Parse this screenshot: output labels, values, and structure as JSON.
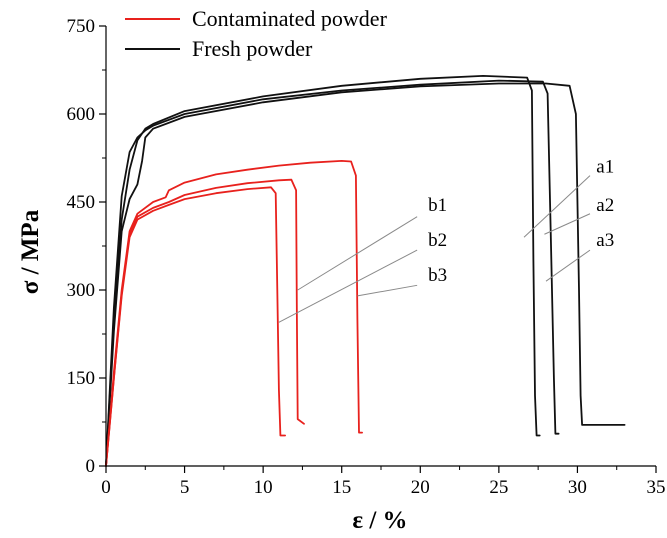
{
  "chart_data": {
    "type": "line",
    "xlabel": "ε / %",
    "ylabel": "σ / MPa",
    "xlim": [
      0,
      35
    ],
    "ylim": [
      0,
      750
    ],
    "xticks": [
      0,
      5,
      10,
      15,
      20,
      25,
      30,
      35
    ],
    "yticks": [
      0,
      150,
      300,
      450,
      600,
      750
    ],
    "legend_position": "top-left",
    "colors": {
      "contaminated": "#e8211d",
      "fresh": "#111111",
      "annotation": "#8a8a8a"
    },
    "legend": [
      {
        "label": "Contaminated powder",
        "color": "#e8211d"
      },
      {
        "label": "Fresh powder",
        "color": "#111111"
      }
    ],
    "series": [
      {
        "name": "a1",
        "group": "fresh",
        "x": [
          0,
          0.5,
          1.0,
          1.5,
          2.0,
          2.5,
          3,
          5,
          10,
          15,
          20,
          24,
          26.8,
          27.1,
          27.2,
          27.3,
          27.4,
          27.6
        ],
        "y": [
          0,
          250,
          420,
          505,
          555,
          575,
          583,
          605,
          630,
          648,
          660,
          665,
          662,
          640,
          350,
          120,
          52,
          52
        ]
      },
      {
        "name": "a2",
        "group": "fresh",
        "x": [
          0,
          0.5,
          1.0,
          1.5,
          2.0,
          2.5,
          3,
          5,
          10,
          15,
          20,
          25,
          27.8,
          28.1,
          28.3,
          28.5,
          28.6,
          28.8
        ],
        "y": [
          0,
          270,
          460,
          535,
          560,
          572,
          580,
          600,
          625,
          640,
          650,
          657,
          655,
          635,
          400,
          150,
          55,
          55
        ]
      },
      {
        "name": "a3",
        "group": "fresh",
        "x": [
          0,
          0.5,
          1.0,
          1.5,
          2.0,
          2.3,
          2.5,
          3,
          5,
          10,
          15,
          20,
          25,
          28,
          29.5,
          29.9,
          30.1,
          30.2,
          30.3,
          33
        ],
        "y": [
          0,
          230,
          400,
          455,
          480,
          520,
          560,
          575,
          595,
          620,
          637,
          647,
          652,
          652,
          648,
          600,
          300,
          120,
          70,
          70
        ]
      },
      {
        "name": "b1",
        "group": "contaminated",
        "x": [
          0,
          0.5,
          1.0,
          1.5,
          2,
          3,
          4,
          5,
          7,
          9,
          10.5,
          10.8,
          10.9,
          11.0,
          11.1,
          11.4
        ],
        "y": [
          0,
          150,
          290,
          390,
          420,
          435,
          445,
          455,
          465,
          472,
          475,
          465,
          300,
          130,
          52,
          52
        ]
      },
      {
        "name": "b2",
        "group": "contaminated",
        "x": [
          0,
          0.5,
          1.0,
          1.5,
          2,
          3,
          4,
          5,
          7,
          9,
          11,
          11.8,
          12.1,
          12.15,
          12.2,
          12.6
        ],
        "y": [
          0,
          150,
          295,
          395,
          425,
          440,
          450,
          462,
          474,
          482,
          487,
          488,
          470,
          250,
          80,
          72
        ]
      },
      {
        "name": "b3",
        "group": "contaminated",
        "x": [
          0,
          0.5,
          1.0,
          1.5,
          2,
          3,
          3.8,
          4,
          5,
          7,
          9,
          11,
          13,
          15,
          15.6,
          15.9,
          16.0,
          16.1,
          16.3
        ],
        "y": [
          0,
          160,
          300,
          400,
          430,
          450,
          458,
          470,
          483,
          497,
          505,
          512,
          517,
          520,
          519,
          495,
          250,
          57,
          57
        ]
      }
    ],
    "annotations": [
      {
        "label": "a1",
        "text_at": [
          31.2,
          500
        ],
        "line": [
          [
            26.6,
            390
          ],
          [
            30.8,
            495
          ]
        ]
      },
      {
        "label": "a2",
        "text_at": [
          31.2,
          435
        ],
        "line": [
          [
            27.9,
            395
          ],
          [
            30.8,
            430
          ]
        ]
      },
      {
        "label": "a3",
        "text_at": [
          31.2,
          375
        ],
        "line": [
          [
            28.0,
            315
          ],
          [
            30.8,
            368
          ]
        ]
      },
      {
        "label": "b1",
        "text_at": [
          20.5,
          435
        ],
        "line": [
          [
            12.2,
            300
          ],
          [
            19.8,
            425
          ]
        ]
      },
      {
        "label": "b2",
        "text_at": [
          20.5,
          375
        ],
        "line": [
          [
            11.0,
            245
          ],
          [
            19.8,
            368
          ]
        ]
      },
      {
        "label": "b3",
        "text_at": [
          20.5,
          315
        ],
        "line": [
          [
            16.0,
            290
          ],
          [
            19.8,
            308
          ]
        ]
      }
    ]
  }
}
